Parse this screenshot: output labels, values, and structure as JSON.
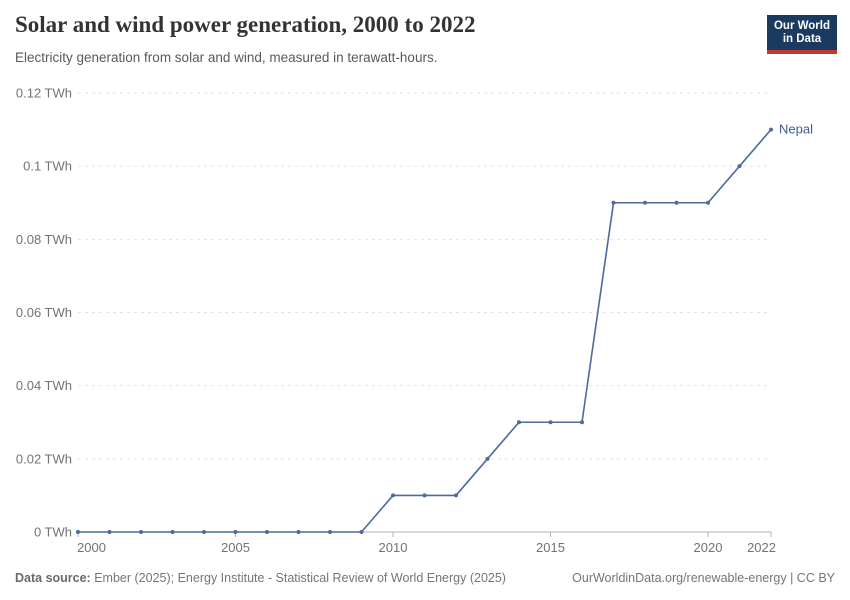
{
  "header": {
    "title": "Solar and wind power generation, 2000 to 2022",
    "subtitle": "Electricity generation from solar and wind, measured in terawatt-hours.",
    "logo": {
      "line1": "Our World",
      "line2": "in Data",
      "bg_color": "#1b3a5f",
      "accent_color": "#c3392f"
    }
  },
  "chart_data": {
    "type": "line",
    "title": "Solar and wind power generation, 2000 to 2022",
    "xlabel": "",
    "ylabel": "",
    "xlim": [
      2000,
      2022
    ],
    "ylim": [
      0,
      0.12
    ],
    "grid": "horizontal-dashed",
    "legend_position": "end-of-line-label",
    "x_ticks": [
      2000,
      2005,
      2010,
      2015,
      2020,
      2022
    ],
    "y_ticks": [
      {
        "value": 0,
        "label": "0 TWh"
      },
      {
        "value": 0.02,
        "label": "0.02 TWh"
      },
      {
        "value": 0.04,
        "label": "0.04 TWh"
      },
      {
        "value": 0.06,
        "label": "0.06 TWh"
      },
      {
        "value": 0.08,
        "label": "0.08 TWh"
      },
      {
        "value": 0.1,
        "label": "0.1 TWh"
      },
      {
        "value": 0.12,
        "label": "0.12 TWh"
      }
    ],
    "series": [
      {
        "name": "Nepal",
        "color": "#4c6a9c",
        "label_color": "#3d5c94",
        "x": [
          2000,
          2001,
          2002,
          2003,
          2004,
          2005,
          2006,
          2007,
          2008,
          2009,
          2010,
          2011,
          2012,
          2013,
          2014,
          2015,
          2016,
          2017,
          2018,
          2019,
          2020,
          2021,
          2022
        ],
        "values": [
          0,
          0,
          0,
          0,
          0,
          0,
          0,
          0,
          0,
          0,
          0.01,
          0.01,
          0.01,
          0.02,
          0.03,
          0.03,
          0.03,
          0.09,
          0.09,
          0.09,
          0.09,
          0.1,
          0.11
        ]
      }
    ],
    "style": {
      "gridline_color": "#e2e2e2",
      "axis_line_color": "#b3b3b3",
      "tick_label_color": "#737373"
    }
  },
  "footer": {
    "source_label": "Data source:",
    "source_text": "Ember (2025); Energy Institute - Statistical Review of World Energy (2025)",
    "attribution": "OurWorldinData.org/renewable-energy | CC BY"
  }
}
